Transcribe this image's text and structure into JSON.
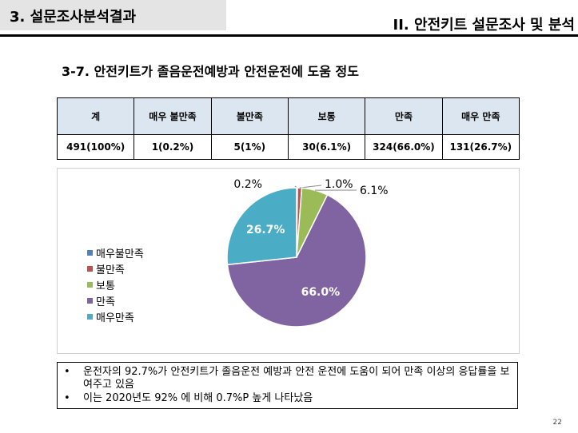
{
  "header": {
    "section_title": "3. 설문조사분석결과",
    "chapter_title": "II. 안전키트 설문조사 및 분석"
  },
  "subtitle": "3-7. 안전키트가 졸음운전예방과 안전운전에 도움 정도",
  "table": {
    "headers": [
      "계",
      "매우 불만족",
      "불만족",
      "보통",
      "만족",
      "매우 만족"
    ],
    "values": [
      "491(100%)",
      "1(0.2%)",
      "5(1%)",
      "30(6.1%)",
      "324(66.0%)",
      "131(26.7%)"
    ]
  },
  "chart_data": {
    "type": "pie",
    "slices": [
      {
        "name": "매우불만족",
        "value": 0.2,
        "label": "0.2%",
        "color": "#4f81bd"
      },
      {
        "name": "불만족",
        "value": 1.0,
        "label": "1.0%",
        "color": "#c0504d"
      },
      {
        "name": "보통",
        "value": 6.1,
        "label": "6.1%",
        "color": "#9bbb59"
      },
      {
        "name": "만족",
        "value": 66.0,
        "label": "66.0%",
        "color": "#8064a2"
      },
      {
        "name": "매우만족",
        "value": 26.7,
        "label": "26.7%",
        "color": "#4bacc6"
      }
    ],
    "legend_position": "left"
  },
  "notes": [
    "운전자의 92.7%가 안전키트가 졸음운전 예방과 안전 운전에 도움이 되어 만족 이상의 응답률을 보여주고 있음",
    "이는 2020년도 92% 에 비해 0.7%P 높게 나타났음"
  ],
  "note_bullet": "•",
  "page_number": "22"
}
